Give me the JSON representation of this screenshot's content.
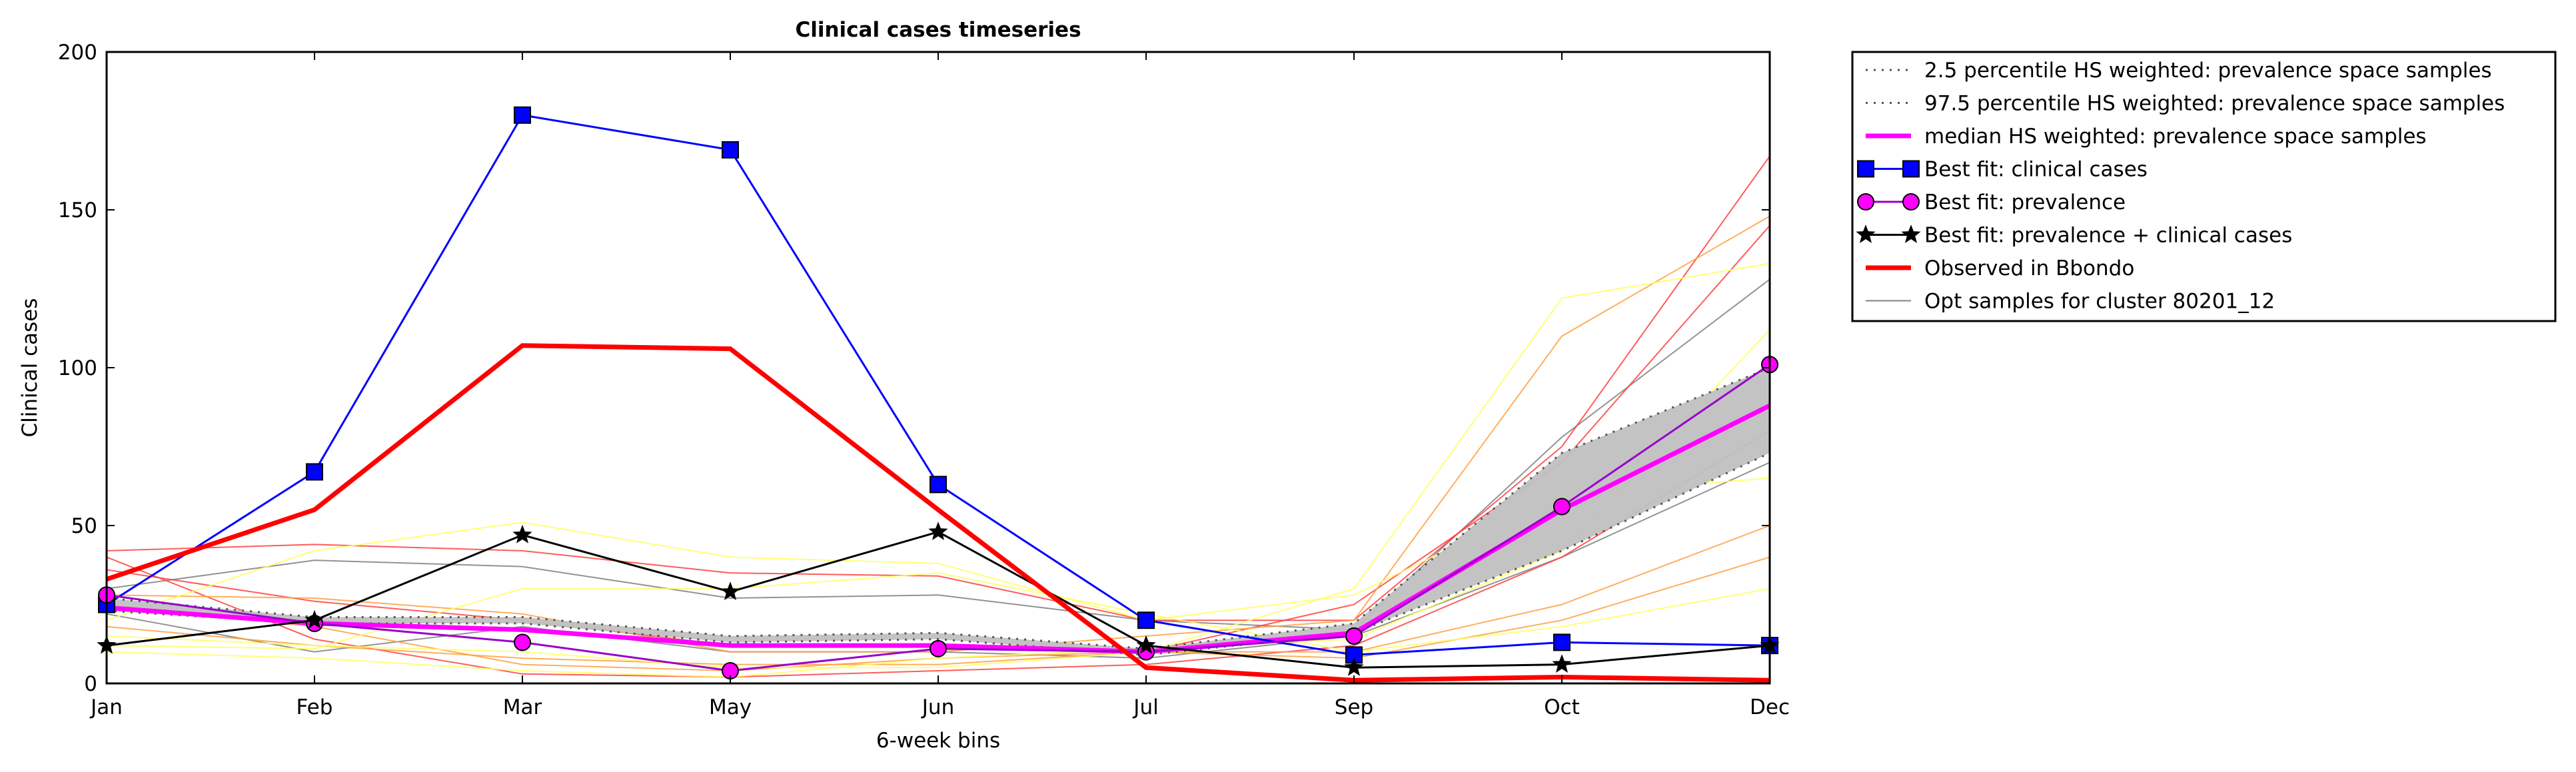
{
  "chart_data": {
    "type": "line",
    "title": "Clinical cases timeseries",
    "xlabel": "6-week bins",
    "ylabel": "Clinical cases",
    "categories": [
      "Jan",
      "Feb",
      "Mar",
      "May",
      "Jun",
      "Jul",
      "Sep",
      "Oct",
      "Dec"
    ],
    "y_ticks": [
      0,
      50,
      100,
      150,
      200
    ],
    "ylim": [
      0,
      200
    ],
    "grid": false,
    "legend_position": "outside-right",
    "band": {
      "lower": [
        23,
        19,
        19,
        13,
        14,
        9,
        16,
        42,
        73
      ],
      "upper": [
        27,
        21,
        21,
        15,
        16,
        11,
        19,
        73,
        100
      ],
      "fill": "#c0c0c0"
    },
    "background_samples": [
      {
        "color": "#808080",
        "values": [
          30,
          39,
          37,
          27,
          28,
          20,
          17,
          78,
          128
        ]
      },
      {
        "color": "#808080",
        "values": [
          22,
          10,
          18,
          10,
          10,
          8,
          15,
          40,
          70
        ]
      },
      {
        "color": "#ff4040",
        "values": [
          42,
          44,
          42,
          35,
          34,
          20,
          20,
          75,
          167
        ]
      },
      {
        "color": "#ff4040",
        "values": [
          36,
          26,
          20,
          12,
          12,
          10,
          25,
          70,
          145
        ]
      },
      {
        "color": "#ff4040",
        "values": [
          40,
          14,
          3,
          2,
          4,
          6,
          12,
          40,
          80
        ]
      },
      {
        "color": "#ffa040",
        "values": [
          28,
          27,
          22,
          10,
          10,
          15,
          20,
          110,
          148
        ]
      },
      {
        "color": "#ffa040",
        "values": [
          25,
          18,
          6,
          4,
          8,
          10,
          10,
          25,
          50
        ]
      },
      {
        "color": "#ffa040",
        "values": [
          18,
          12,
          8,
          6,
          6,
          10,
          8,
          20,
          40
        ]
      },
      {
        "color": "#ffff60",
        "values": [
          15,
          12,
          10,
          5,
          5,
          10,
          30,
          122,
          133
        ]
      },
      {
        "color": "#ffff60",
        "values": [
          20,
          42,
          51,
          40,
          38,
          20,
          28,
          60,
          65
        ]
      },
      {
        "color": "#ffff60",
        "values": [
          12,
          11,
          30,
          30,
          35,
          22,
          10,
          18,
          30
        ]
      },
      {
        "color": "#ffff60",
        "values": [
          10,
          8,
          4,
          2,
          8,
          11,
          14,
          42,
          112
        ]
      }
    ],
    "series": [
      {
        "name": "2.5 percentile HS weighted: prevalence space samples",
        "color": "#555555",
        "style": "dotted",
        "values": [
          23,
          19,
          19,
          13,
          14,
          9,
          16,
          42,
          73
        ]
      },
      {
        "name": "97.5 percentile HS weighted: prevalence space samples",
        "color": "#555555",
        "style": "dotted",
        "values": [
          27,
          21,
          21,
          15,
          16,
          11,
          19,
          73,
          100
        ]
      },
      {
        "name": "median HS weighted: prevalence space samples",
        "color": "#ff00ff",
        "style": "solid-thick",
        "values": [
          24,
          19,
          17,
          12,
          12,
          10,
          16,
          55,
          88
        ]
      },
      {
        "name": "Best fit: clinical cases",
        "color": "#0000ff",
        "marker": "square",
        "values": [
          25,
          67,
          180,
          169,
          63,
          20,
          9,
          13,
          12
        ]
      },
      {
        "name": "Best fit: prevalence",
        "color": "#ff00ff",
        "line_color": "#9900cc",
        "marker": "circle",
        "values": [
          28,
          19,
          13,
          4,
          11,
          10,
          15,
          56,
          101
        ]
      },
      {
        "name": "Best fit: prevalence + clinical cases",
        "color": "#000000",
        "marker": "star",
        "values": [
          12,
          20,
          47,
          29,
          48,
          12,
          5,
          6,
          12
        ]
      },
      {
        "name": "Observed in Bbondo",
        "color": "#ff0000",
        "style": "solid-thick",
        "values": [
          33,
          55,
          107,
          106,
          55,
          5,
          1,
          2,
          1
        ]
      },
      {
        "name": "Opt samples for cluster 80201_12",
        "color": "#808080",
        "style": "thin"
      }
    ]
  }
}
